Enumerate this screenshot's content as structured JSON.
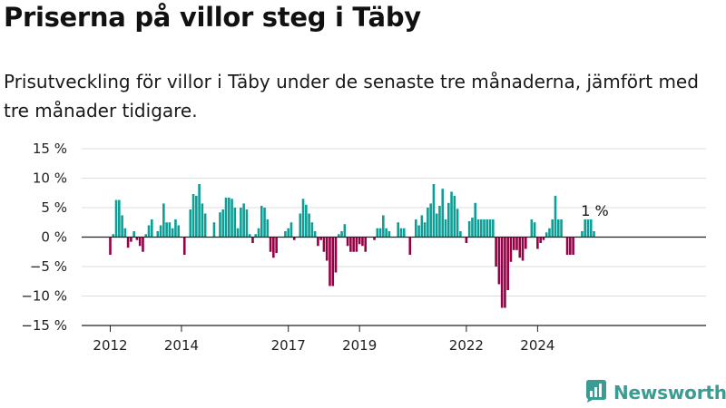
{
  "header": {
    "title": "Priserna på villor steg i Täby",
    "subtitle": "Prisutveckling för villor i Täby under de senaste tre månaderna, jämfört med tre månader tidigare."
  },
  "brand": {
    "name": "Newsworthy",
    "icon": "bar-chart-logo-icon"
  },
  "colors": {
    "positive": "#0d9e96",
    "negative": "#960045",
    "grid": "#dddddd",
    "axis": "#222222",
    "brand": "#3b9c93"
  },
  "chart_data": {
    "type": "bar",
    "title": "Priserna på villor steg i Täby",
    "subtitle": "Prisutveckling för villor i Täby under de senaste tre månaderna, jämfört med tre månader tidigare.",
    "xlabel": "",
    "ylabel": "",
    "ylim": [
      -15,
      15
    ],
    "yticks": [
      15,
      10,
      5,
      0,
      -5,
      -10,
      -15
    ],
    "ytick_labels": [
      "15 %",
      "10 %",
      "5 %",
      "0 %",
      "−5 %",
      "−10 %",
      "−15 %"
    ],
    "xticks": [
      2012,
      2014,
      2017,
      2019,
      2022,
      2024
    ],
    "xtick_labels": [
      "2012",
      "2014",
      "2017",
      "2019",
      "2022",
      "2024"
    ],
    "grid": true,
    "legend": "none",
    "x_start": "2012-01",
    "frequency": "monthly",
    "values": [
      -3,
      0.5,
      6.3,
      6.3,
      3.7,
      1.5,
      -1.8,
      -0.8,
      1,
      -0.5,
      -1.5,
      -2.5,
      0.5,
      2,
      3,
      0,
      1,
      2,
      5.7,
      2.5,
      2.5,
      1.5,
      3,
      2,
      0,
      -3,
      0,
      4.7,
      7.3,
      7,
      9,
      5.7,
      4,
      0,
      0,
      2.5,
      0,
      4.2,
      4.7,
      6.7,
      6.7,
      6.5,
      5,
      1.5,
      5,
      5.7,
      4.7,
      0.5,
      -1,
      0.5,
      1.5,
      5.3,
      5,
      3,
      -2.5,
      -3.5,
      -2.7,
      0,
      0,
      1,
      1.5,
      2.5,
      -0.5,
      0,
      4,
      6.5,
      5.5,
      4,
      2.5,
      1,
      -1.5,
      -0.5,
      -2.5,
      -4,
      -8.3,
      -8.3,
      -6,
      0.5,
      1,
      2.2,
      -1.5,
      -2.5,
      -2.5,
      -2.5,
      -1.2,
      -1.5,
      -2.5,
      0,
      0,
      -0.5,
      1.5,
      1.5,
      3.7,
      1.5,
      1,
      0,
      0,
      2.5,
      1.5,
      1.5,
      0,
      -3,
      0,
      3,
      2,
      3.7,
      2.5,
      5,
      5.7,
      9,
      4,
      5.3,
      8.2,
      3,
      5.8,
      7.7,
      7,
      4.8,
      1,
      0,
      -1,
      2.7,
      3.3,
      5.8,
      3,
      3,
      3,
      3,
      3,
      3,
      -5,
      -8,
      -12,
      -12,
      -9,
      -4.2,
      -2.2,
      -2.2,
      -3.5,
      -4,
      -2,
      0,
      3,
      2.5,
      -2,
      -1,
      -0.5,
      0.8,
      1.5,
      3,
      7,
      3,
      3,
      0,
      -3,
      -3,
      -3,
      0,
      0,
      1,
      3,
      3,
      3,
      1
    ],
    "annotations": [
      {
        "text": "1 %",
        "at": "last"
      }
    ]
  }
}
